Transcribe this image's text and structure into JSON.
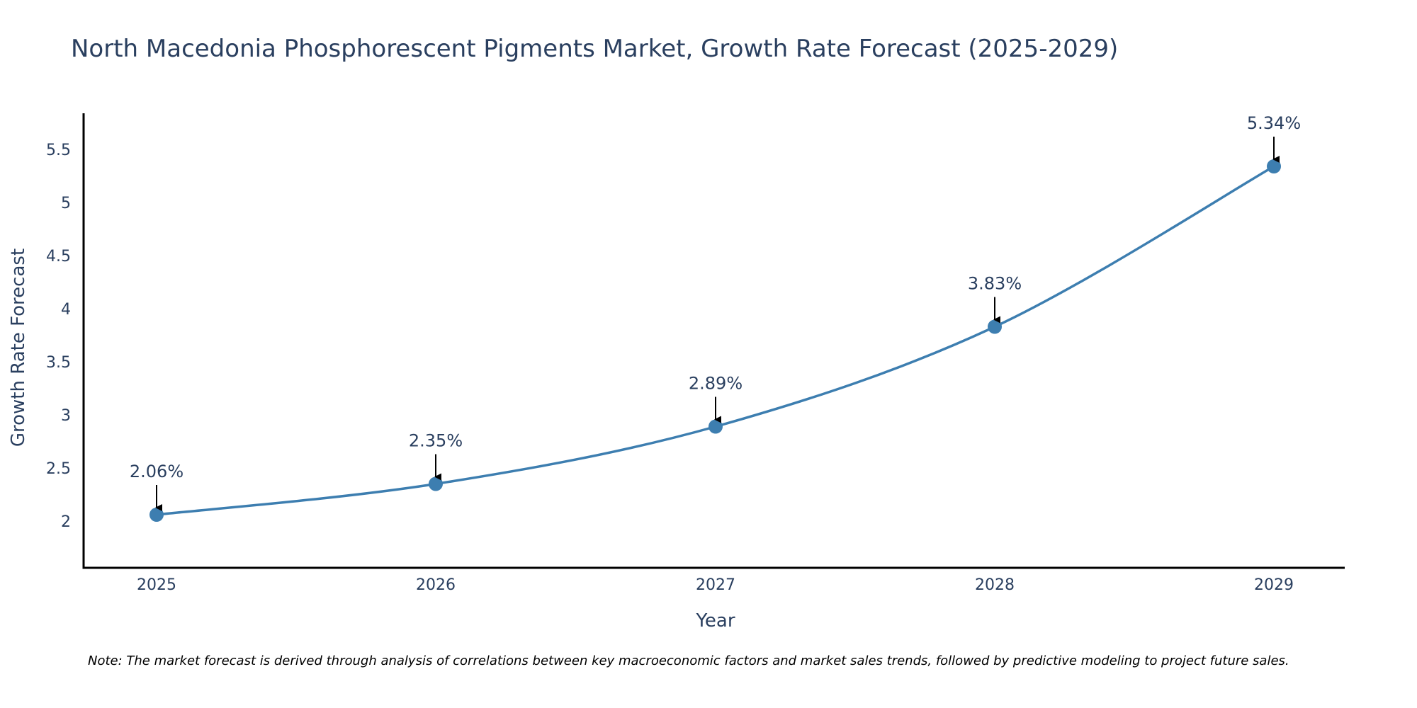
{
  "chart_data": {
    "type": "line",
    "title": "North Macedonia Phosphorescent Pigments Market, Growth Rate Forecast (2025-2029)",
    "xlabel": "Year",
    "ylabel": "Growth Rate Forecast",
    "x": [
      "2025",
      "2026",
      "2027",
      "2028",
      "2029"
    ],
    "values": [
      2.06,
      2.35,
      2.89,
      3.83,
      5.34
    ],
    "data_labels": [
      "2.06%",
      "2.35%",
      "2.89%",
      "3.83%",
      "5.34%"
    ],
    "yticks": [
      2,
      2.5,
      3,
      3.5,
      4,
      4.5,
      5,
      5.5
    ],
    "ytick_labels": [
      "2",
      "2.5",
      "3",
      "3.5",
      "4",
      "4.5",
      "5",
      "5.5"
    ],
    "ylim": [
      1.56,
      5.84
    ],
    "grid": false,
    "line_shape": "spline",
    "marker": "circle",
    "line_color": "#3d7eb0",
    "marker_color": "#3d7eb0",
    "axis_color": "#000000",
    "text_color": "#2a3f5f",
    "annotation_arrow_color": "#000000"
  },
  "note": "Note: The market forecast is derived through analysis of correlations between key macroeconomic factors and market sales trends, followed by predictive modeling to project future sales."
}
